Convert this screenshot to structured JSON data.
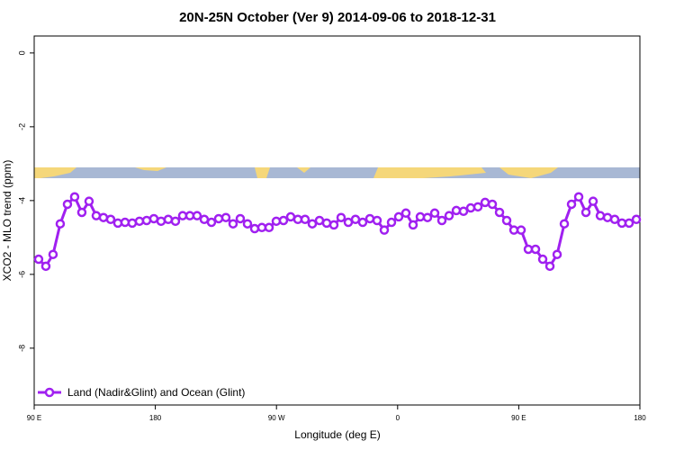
{
  "chart_data": {
    "type": "line",
    "title": "20N-25N October (Ver 9)   2014-09-06 to 2018-12-31",
    "x_label": "Longitude (deg E)",
    "y_label": "XCO2 - MLO trend (ppm)",
    "x": [
      93.3,
      98.65,
      104,
      109.35,
      114.7,
      120.05,
      125.4,
      130.75,
      136.1,
      141.45,
      146.8,
      152.15,
      157.5,
      162.85,
      168.2,
      173.55,
      178.9,
      184.25,
      189.6,
      194.95,
      200.3,
      205.65,
      211,
      216.35,
      221.7,
      227.05,
      232.4,
      237.75,
      243.1,
      248.45,
      253.8,
      259.15,
      264.5,
      269.85,
      275.2,
      280.55,
      285.9,
      291.25,
      296.6,
      301.95,
      307.3,
      312.65,
      318,
      323.35,
      328.7,
      334.05,
      339.4,
      344.75,
      350.1,
      355.45,
      360.8,
      366.15,
      371.5,
      376.85,
      382.2,
      387.55,
      392.9,
      398.25,
      403.6,
      408.95,
      414.3,
      419.65,
      425,
      430.35,
      435.7,
      441.05,
      446.4,
      451.75,
      457.1,
      462.45,
      467.8,
      473.15,
      478.5,
      483.85,
      489.2,
      494.55,
      499.9,
      505.25,
      510.6,
      515.95,
      521.3,
      526.65,
      532,
      537.35
    ],
    "series": [
      {
        "name": "Land (Nadir&Glint) and Ocean (Glint)",
        "color": "#a020f0",
        "values": [
          -5.59,
          -5.78,
          -5.46,
          -4.63,
          -4.1,
          -3.9,
          -4.32,
          -4.02,
          -4.41,
          -4.46,
          -4.51,
          -4.61,
          -4.59,
          -4.61,
          -4.56,
          -4.54,
          -4.49,
          -4.56,
          -4.51,
          -4.56,
          -4.41,
          -4.41,
          -4.41,
          -4.51,
          -4.59,
          -4.49,
          -4.46,
          -4.63,
          -4.49,
          -4.63,
          -4.76,
          -4.73,
          -4.73,
          -4.56,
          -4.54,
          -4.44,
          -4.51,
          -4.51,
          -4.63,
          -4.54,
          -4.61,
          -4.66,
          -4.46,
          -4.59,
          -4.51,
          -4.59,
          -4.49,
          -4.54,
          -4.8,
          -4.59,
          -4.44,
          -4.34,
          -4.66,
          -4.44,
          -4.46,
          -4.34,
          -4.54,
          -4.41,
          -4.27,
          -4.29,
          -4.2,
          -4.17,
          -4.05,
          -4.1,
          -4.32,
          -4.54,
          -4.8,
          -4.8,
          -5.32,
          -5.32,
          -5.59,
          -5.78,
          -5.46,
          -4.63,
          -4.1,
          -3.9,
          -4.32,
          -4.02,
          -4.41,
          -4.46,
          -4.51,
          -4.61,
          -4.61,
          -4.51
        ]
      }
    ],
    "xlim": [
      90,
      540
    ],
    "xticks": [
      {
        "value": 90,
        "label": "90 E"
      },
      {
        "value": 180,
        "label": "180"
      },
      {
        "value": 270,
        "label": "90 W"
      },
      {
        "value": 360,
        "label": "0"
      },
      {
        "value": 450,
        "label": "90 E"
      },
      {
        "value": 540,
        "label": "180"
      }
    ],
    "ylim": [
      -9.54,
      0.46
    ],
    "yticks": [
      0,
      -2,
      -4,
      -6,
      -8
    ],
    "legend": "bottom-left"
  }
}
